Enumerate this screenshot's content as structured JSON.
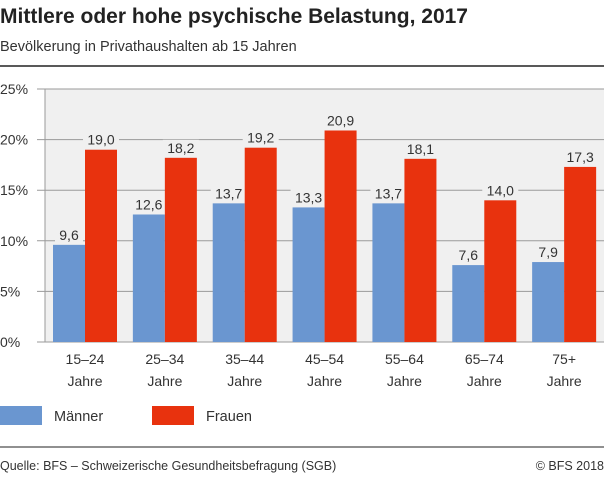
{
  "chart_data": {
    "type": "bar",
    "title": "Mittlere oder hohe psychische Belastung, 2017",
    "subtitle": "Bevölkerung in Privathaushalten ab 15 Jahren",
    "categories": [
      [
        "15–24",
        "Jahre"
      ],
      [
        "25–34",
        "Jahre"
      ],
      [
        "35–44",
        "Jahre"
      ],
      [
        "45–54",
        "Jahre"
      ],
      [
        "55–64",
        "Jahre"
      ],
      [
        "65–74",
        "Jahre"
      ],
      [
        "75+",
        "Jahre"
      ]
    ],
    "series": [
      {
        "name": "Männer",
        "color": "#6a96d0",
        "values": [
          9.6,
          12.6,
          13.7,
          13.3,
          13.7,
          7.6,
          7.9
        ],
        "labels": [
          "9,6",
          "12,6",
          "13,7",
          "13,3",
          "13,7",
          "7,6",
          "7,9"
        ]
      },
      {
        "name": "Frauen",
        "color": "#e8320e",
        "values": [
          19.0,
          18.2,
          19.2,
          20.9,
          18.1,
          14.0,
          17.3
        ],
        "labels": [
          "19,0",
          "18,2",
          "19,2",
          "20,9",
          "18,1",
          "14,0",
          "17,3"
        ]
      }
    ],
    "ylim": [
      0,
      25
    ],
    "yticks": [
      0,
      5,
      10,
      15,
      20,
      25
    ],
    "ytick_labels": [
      "0%",
      "5%",
      "10%",
      "15%",
      "20%",
      "25%"
    ],
    "grid": true,
    "legend": "bottom-left",
    "plot_background": "#f0f0f0"
  },
  "footer": {
    "source": "Quelle: BFS – Schweizerische Gesundheitsbefragung (SGB)",
    "copyright": "© BFS 2018"
  }
}
